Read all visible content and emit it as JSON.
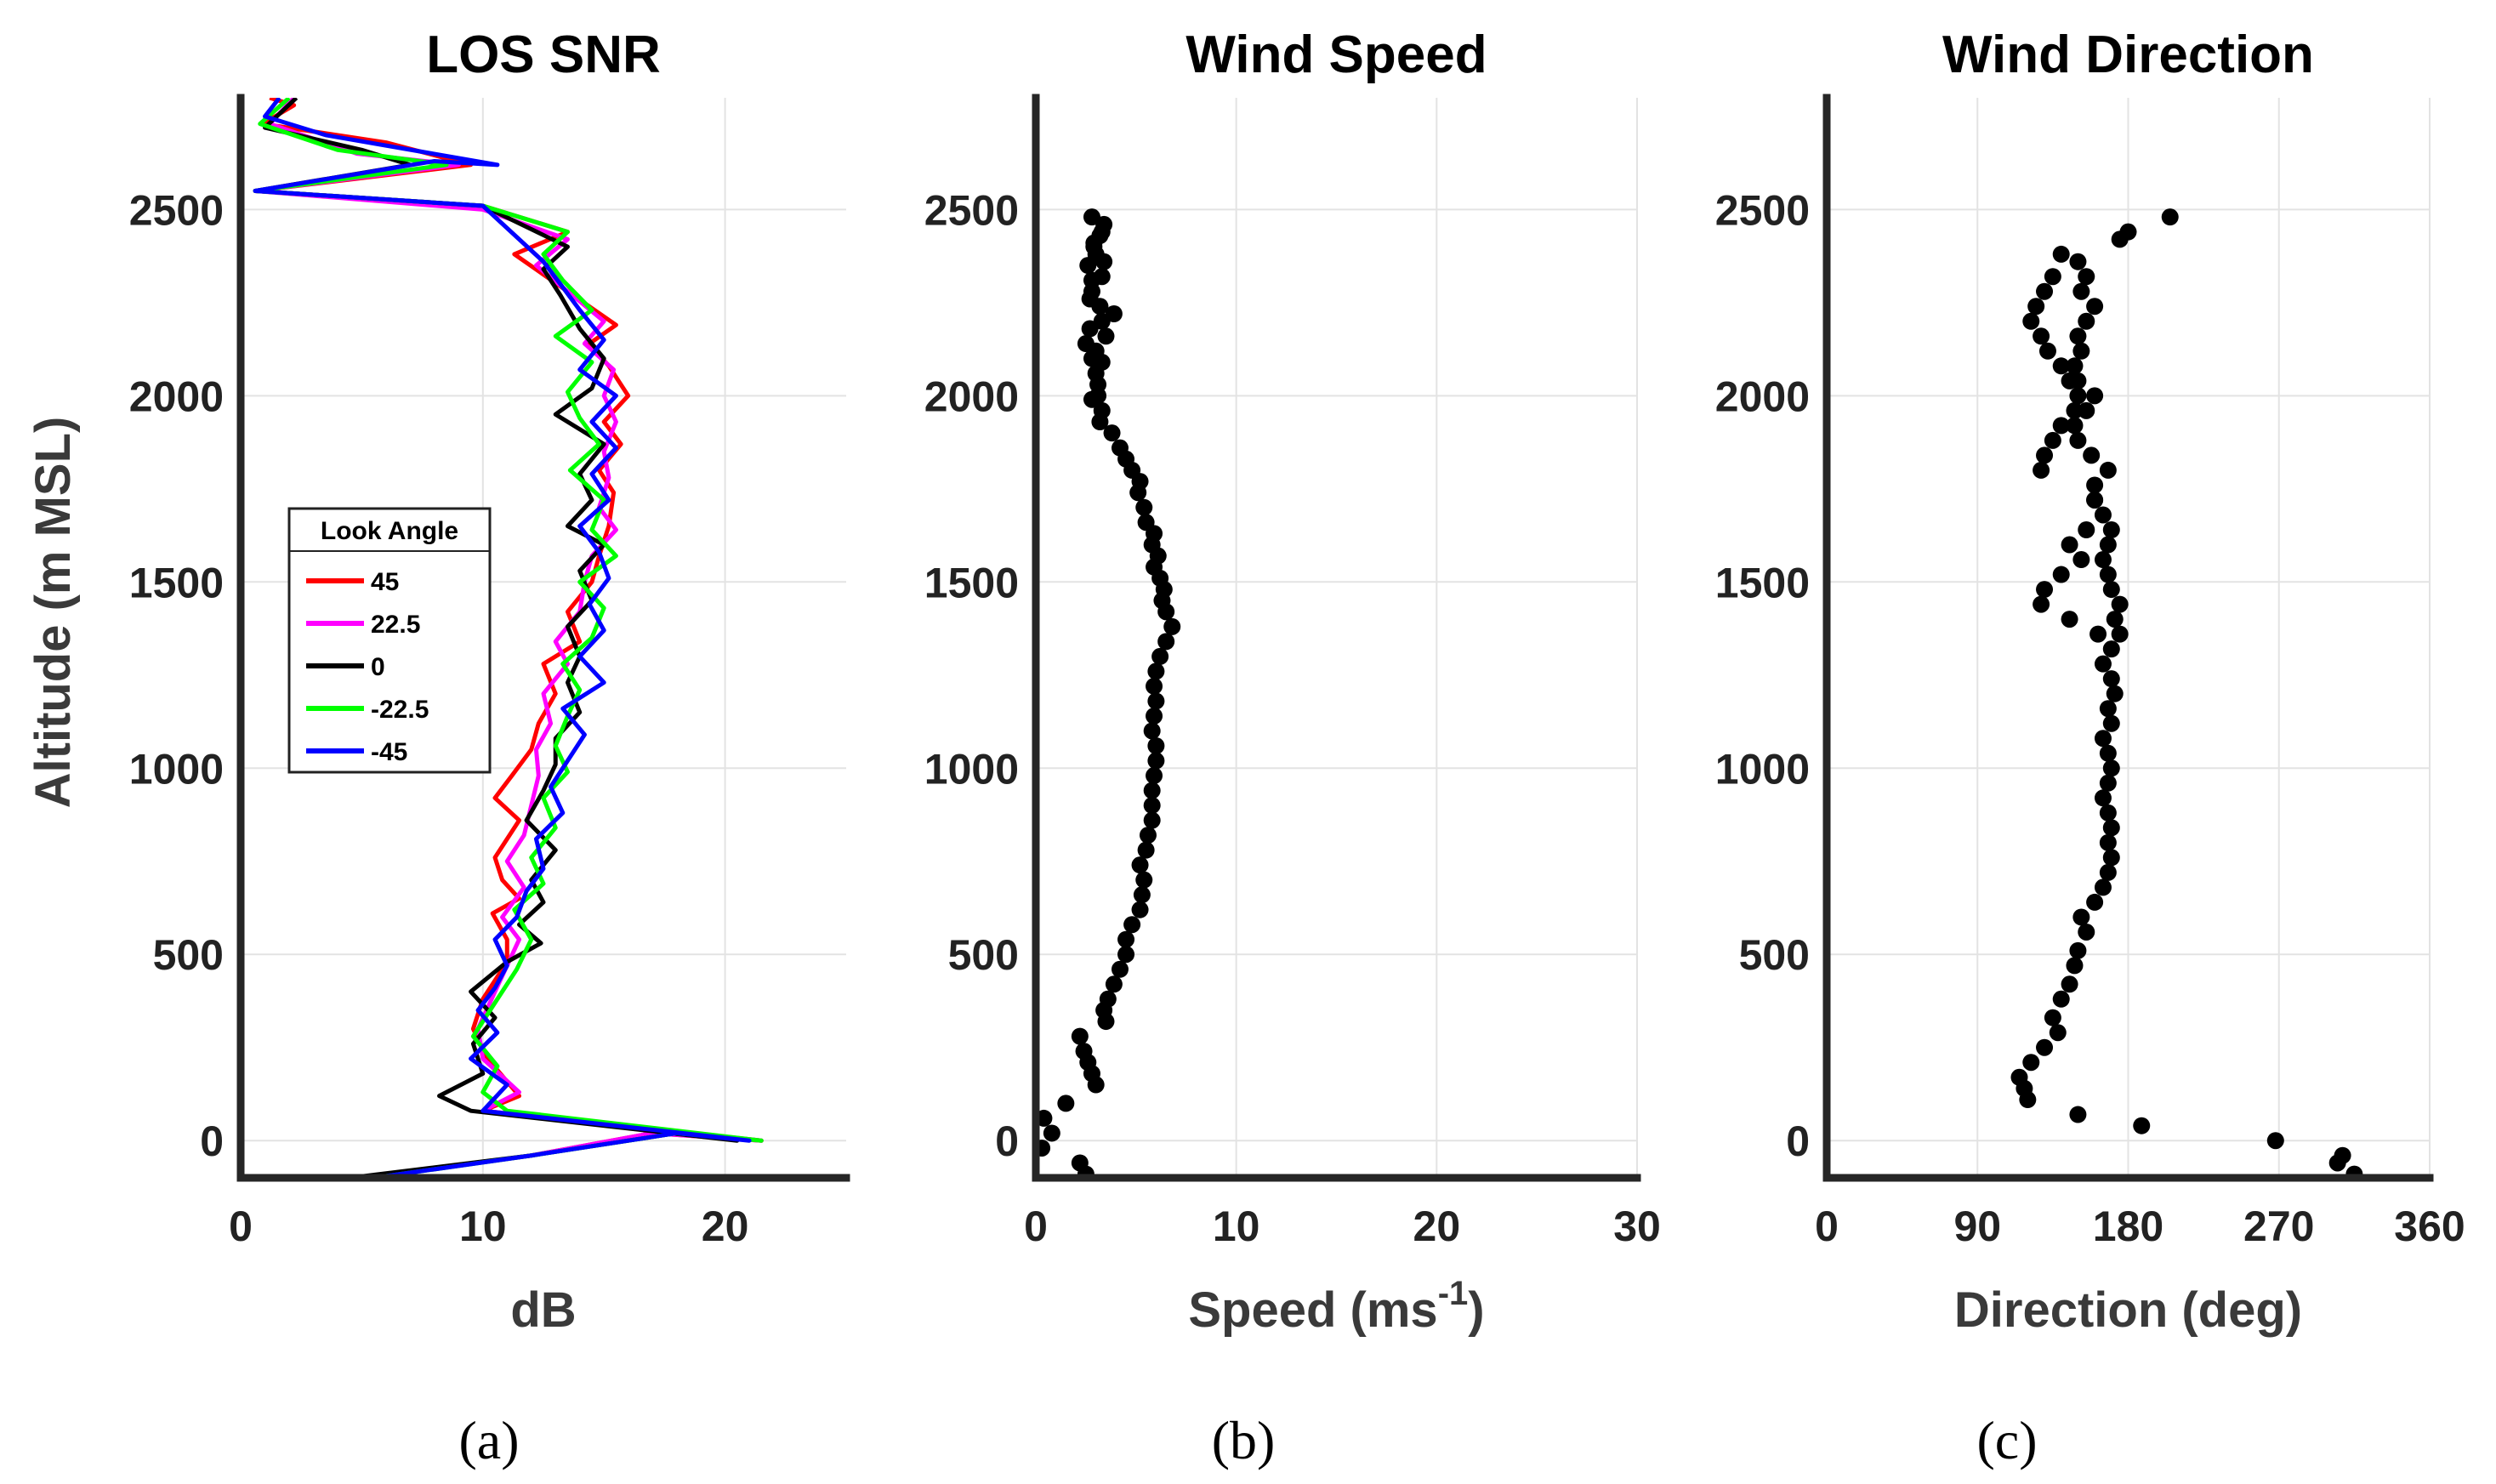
{
  "figure": {
    "panel_labels": [
      "(a)",
      "(b)",
      "(c)"
    ]
  },
  "chart_data": [
    {
      "id": "snr",
      "type": "line",
      "title": "LOS SNR",
      "xlabel": "dB",
      "ylabel": "Altitude (m MSL)",
      "xlim": [
        0,
        25
      ],
      "ylim": [
        -100,
        2800
      ],
      "xticks": [
        0,
        10,
        20
      ],
      "yticks": [
        0,
        500,
        1000,
        1500,
        2000,
        2500
      ],
      "grid": true,
      "legend": {
        "title": "Look Angle",
        "placement": "center-left",
        "entries": [
          "45",
          "22.5",
          "0",
          "-22.5",
          "-45"
        ]
      },
      "series": [
        {
          "name": "45",
          "color": "#ff0000",
          "x": [
            5.3,
            12,
            17,
            21.5,
            10,
            11.5,
            10.2,
            9.6,
            10,
            11,
            11,
            10.4,
            11.5,
            10.8,
            10.5,
            11.5,
            10.5,
            11.2,
            12,
            12.3,
            13,
            12.5,
            14,
            13.5,
            14.5,
            14.8,
            15.2,
            15.4,
            14.8,
            15.7,
            15,
            16,
            15.2,
            14.4,
            15.5,
            13.5,
            11.3,
            13.5,
            10,
            0.6,
            9.5,
            6,
            0.9,
            2.2,
            1.2
          ],
          "y": [
            -100,
            -40,
            20,
            0,
            80,
            120,
            220,
            300,
            380,
            480,
            540,
            610,
            650,
            700,
            760,
            860,
            920,
            980,
            1050,
            1120,
            1200,
            1280,
            1340,
            1420,
            1500,
            1570,
            1650,
            1740,
            1800,
            1870,
            1930,
            2000,
            2080,
            2140,
            2190,
            2280,
            2380,
            2440,
            2510,
            2550,
            2620,
            2680,
            2730,
            2780,
            2800
          ]
        },
        {
          "name": "22.5",
          "color": "#ff00ff",
          "x": [
            5.3,
            12,
            17,
            21.5,
            10,
            11.5,
            10,
            9.8,
            10.5,
            11,
            11.5,
            10.8,
            11.7,
            11,
            11.7,
            12,
            12.3,
            12.2,
            12.8,
            12.5,
            13.5,
            13,
            14,
            14.2,
            14.5,
            15.5,
            14.8,
            15.2,
            15,
            15.5,
            15,
            15.4,
            14.2,
            15,
            13.5,
            12.2,
            13.5,
            10,
            0.6,
            9,
            4.8,
            1.2,
            2.2
          ],
          "y": [
            -100,
            -40,
            20,
            0,
            80,
            130,
            220,
            300,
            400,
            470,
            540,
            600,
            680,
            750,
            820,
            900,
            980,
            1050,
            1120,
            1200,
            1280,
            1340,
            1420,
            1500,
            1570,
            1640,
            1700,
            1780,
            1850,
            1930,
            2000,
            2070,
            2140,
            2200,
            2280,
            2350,
            2420,
            2500,
            2550,
            2620,
            2650,
            2730,
            2800
          ]
        },
        {
          "name": "0",
          "color": "#000000",
          "x": [
            4.5,
            12,
            18,
            20.5,
            9.5,
            8.2,
            10,
            9.6,
            10.5,
            9.5,
            11,
            12.4,
            11.5,
            12.5,
            12,
            13,
            11.8,
            12.5,
            13,
            13,
            14,
            13.5,
            14,
            13.5,
            14.5,
            14,
            15,
            13.5,
            14.5,
            14,
            15,
            13,
            14.5,
            15,
            14,
            13.2,
            12.5,
            13.5,
            10,
            0.6,
            7,
            5,
            1,
            2.3
          ],
          "y": [
            -100,
            -40,
            20,
            0,
            80,
            120,
            180,
            260,
            330,
            400,
            480,
            530,
            580,
            640,
            700,
            780,
            860,
            940,
            1010,
            1080,
            1150,
            1230,
            1300,
            1380,
            1450,
            1530,
            1600,
            1650,
            1720,
            1790,
            1870,
            1950,
            2020,
            2100,
            2180,
            2270,
            2340,
            2400,
            2510,
            2550,
            2620,
            2660,
            2720,
            2800
          ]
        },
        {
          "name": "-22.5",
          "color": "#00ff00",
          "x": [
            5.5,
            12,
            18,
            21.5,
            11,
            10,
            10.6,
            9.6,
            10.6,
            11.4,
            12,
            11.3,
            12.5,
            12,
            13,
            12.5,
            13.5,
            13,
            13.5,
            14,
            13.3,
            14.5,
            15,
            14,
            15.5,
            14.5,
            15,
            13.6,
            14.8,
            14,
            13.5,
            14.5,
            13,
            14.5,
            13.3,
            12.5,
            13.5,
            10,
            0.6,
            8.5,
            4,
            0.8,
            2
          ],
          "y": [
            -100,
            -40,
            20,
            0,
            80,
            130,
            200,
            280,
            380,
            460,
            540,
            620,
            690,
            760,
            840,
            920,
            990,
            1060,
            1140,
            1210,
            1280,
            1350,
            1430,
            1500,
            1570,
            1640,
            1720,
            1800,
            1870,
            1940,
            2010,
            2090,
            2160,
            2230,
            2310,
            2380,
            2440,
            2510,
            2550,
            2620,
            2660,
            2730,
            2800
          ]
        },
        {
          "name": "-45",
          "color": "#0000ff",
          "x": [
            5.5,
            12,
            18,
            21,
            10,
            11,
            9.5,
            10.6,
            9.8,
            10.5,
            11,
            10.5,
            11.4,
            11.8,
            12.5,
            12.2,
            13.3,
            12.8,
            13.5,
            14.2,
            13.3,
            15,
            14,
            15,
            14.4,
            15.2,
            14.8,
            14,
            15.2,
            14.5,
            15.5,
            14.5,
            15.5,
            14,
            15,
            14,
            13.2,
            12.5,
            10,
            0.6,
            8,
            10.6,
            3.5,
            1,
            1.6
          ],
          "y": [
            -100,
            -40,
            20,
            0,
            80,
            150,
            220,
            290,
            350,
            410,
            470,
            540,
            600,
            670,
            730,
            810,
            880,
            950,
            1020,
            1090,
            1160,
            1230,
            1300,
            1370,
            1440,
            1510,
            1580,
            1650,
            1720,
            1790,
            1860,
            1930,
            2000,
            2070,
            2150,
            2230,
            2300,
            2360,
            2510,
            2550,
            2630,
            2620,
            2700,
            2750,
            2800
          ]
        }
      ]
    },
    {
      "id": "speed",
      "type": "scatter",
      "title": "Wind Speed",
      "xlabel": "Speed (ms",
      "xlabel_superscript": "-1",
      "xlabel_suffix": ")",
      "xlim": [
        0,
        30
      ],
      "ylim": [
        -100,
        2800
      ],
      "xticks": [
        0,
        10,
        20,
        30
      ],
      "yticks": [
        0,
        500,
        1000,
        1500,
        2000,
        2500
      ],
      "grid": true,
      "series": [
        {
          "name": "speed",
          "color": "#000000",
          "x": [
            2.5,
            2.2,
            0.3,
            0.8,
            0.4,
            1.5,
            3,
            2.8,
            2.6,
            2.4,
            2.2,
            3.5,
            3.4,
            3.6,
            3.9,
            4.2,
            4.5,
            4.5,
            4.8,
            5.2,
            5.3,
            5.4,
            5.2,
            5.5,
            5.6,
            5.8,
            5.8,
            5.8,
            5.9,
            6,
            6,
            5.8,
            5.9,
            6,
            5.9,
            6,
            6.2,
            6.5,
            6.8,
            6.5,
            6.3,
            6.4,
            6.2,
            5.9,
            6.1,
            5.8,
            5.9,
            5.5,
            5.4,
            5.1,
            5.2,
            4.8,
            4.5,
            4.2,
            3.8,
            3.2,
            3.3,
            2.8,
            3.1,
            3,
            3.3,
            3,
            3.5,
            3.3,
            3.2,
            2.8,
            3.3,
            3.4,
            2.9,
            3.2,
            3.4,
            2.8,
            3.3,
            2.9,
            3,
            2.6,
            2.8,
            2.7,
            3.9,
            2.7,
            2.5,
            2.8,
            3.1
          ],
          "y": [
            -90,
            -60,
            -20,
            20,
            60,
            100,
            150,
            180,
            210,
            240,
            280,
            320,
            350,
            380,
            420,
            460,
            500,
            540,
            580,
            620,
            660,
            700,
            740,
            780,
            820,
            860,
            900,
            940,
            980,
            1020,
            1060,
            1100,
            1140,
            1180,
            1220,
            1260,
            1300,
            1340,
            1380,
            1420,
            1450,
            1480,
            1510,
            1540,
            1570,
            1600,
            1630,
            1660,
            1700,
            1740,
            1770,
            1800,
            1830,
            1860,
            1900,
            1930,
            1960,
            1990,
            2030,
            2060,
            2090,
            2120,
            2160,
            2200,
            2240,
            2280,
            2320,
            2360,
            2400,
            2430,
            2460,
            2480,
            2440,
            2410,
            2380,
            2350,
            2310,
            2260,
            2220,
            2180,
            2140,
            2100,
            2000
          ]
        }
      ]
    },
    {
      "id": "direction",
      "type": "scatter",
      "title": "Wind Direction",
      "xlabel": "Direction (deg)",
      "xlim": [
        0,
        360
      ],
      "ylim": [
        -100,
        2800
      ],
      "xticks": [
        0,
        90,
        180,
        270,
        360
      ],
      "yticks": [
        0,
        500,
        1000,
        1500,
        2000,
        2500
      ],
      "grid": true,
      "series": [
        {
          "name": "direction",
          "color": "#000000",
          "x": [
            315,
            305,
            308,
            268,
            188,
            150,
            120,
            118,
            115,
            122,
            130,
            138,
            135,
            140,
            145,
            148,
            150,
            155,
            152,
            160,
            165,
            168,
            170,
            168,
            170,
            168,
            165,
            168,
            170,
            168,
            165,
            170,
            168,
            172,
            170,
            165,
            170,
            175,
            172,
            175,
            170,
            168,
            165,
            168,
            170,
            165,
            160,
            160,
            168,
            158,
            150,
            148,
            155,
            150,
            145,
            148,
            152,
            150,
            155,
            160,
            152,
            155,
            150,
            140,
            135,
            130,
            125,
            122,
            128,
            132,
            140,
            150,
            160,
            148,
            140,
            135,
            130,
            128,
            160,
            155,
            145,
            152,
            140,
            130,
            128,
            145,
            162,
            175,
            180,
            205
          ],
          "y": [
            -90,
            -60,
            -40,
            0,
            40,
            70,
            110,
            140,
            170,
            210,
            250,
            290,
            330,
            380,
            420,
            470,
            510,
            560,
            600,
            640,
            680,
            720,
            760,
            800,
            840,
            880,
            920,
            960,
            1000,
            1040,
            1080,
            1120,
            1160,
            1200,
            1240,
            1280,
            1320,
            1360,
            1400,
            1440,
            1480,
            1520,
            1560,
            1600,
            1640,
            1680,
            1720,
            1760,
            1800,
            1840,
            1880,
            1920,
            1960,
            2000,
            2040,
            2080,
            2120,
            2160,
            2200,
            2240,
            2280,
            2320,
            2360,
            2380,
            2320,
            2280,
            2240,
            2200,
            2160,
            2120,
            2080,
            2040,
            2000,
            1960,
            1920,
            1880,
            1840,
            1800,
            1720,
            1640,
            1600,
            1560,
            1520,
            1480,
            1440,
            1400,
            1360,
            2420,
            2440,
            2480
          ]
        }
      ]
    }
  ]
}
